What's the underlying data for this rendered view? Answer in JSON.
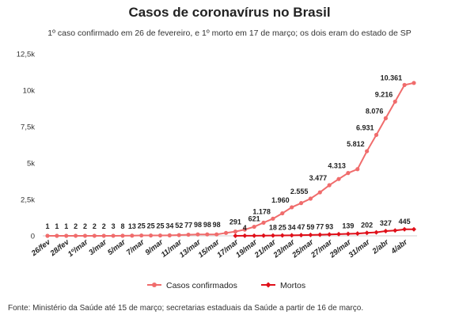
{
  "chart_data": {
    "type": "line",
    "title": "Casos de coronavírus no Brasil",
    "subtitle": "1º caso confirmado em 26 de fevereiro, e 1º morto em 17 de março; os dois eram do estado de SP",
    "xlabel": "",
    "ylabel": "",
    "ylim": [
      0,
      12500
    ],
    "yticks": [
      0,
      2500,
      5000,
      7500,
      10000,
      12500
    ],
    "ytick_labels": [
      "0",
      "2,5k",
      "5k",
      "7,5k",
      "10k",
      "12,5k"
    ],
    "grid": false,
    "legend_position": "bottom",
    "x": [
      "26/fev",
      "27/fev",
      "28/fev",
      "29/fev",
      "1º/mar",
      "2/mar",
      "3/mar",
      "4/mar",
      "5/mar",
      "6/mar",
      "7/mar",
      "8/mar",
      "9/mar",
      "10/mar",
      "11/mar",
      "12/mar",
      "13/mar",
      "14/mar",
      "15/mar",
      "16/mar",
      "17/mar",
      "18/mar",
      "19/mar",
      "20/mar",
      "21/mar",
      "22/mar",
      "23/mar",
      "24/mar",
      "25/mar",
      "26/mar",
      "27/mar",
      "28/mar",
      "29/mar",
      "30/mar",
      "31/mar",
      "1º/abr",
      "2/abr",
      "3/abr",
      "4/abr",
      "5/abr"
    ],
    "x_tick_labels": [
      "26/fev",
      "",
      "28/fev",
      "",
      "1º/mar",
      "",
      "3/mar",
      "",
      "5/mar",
      "",
      "7/mar",
      "",
      "9/mar",
      "",
      "11/mar",
      "",
      "13/mar",
      "",
      "15/mar",
      "",
      "17/mar",
      "",
      "19/mar",
      "",
      "21/mar",
      "",
      "23/mar",
      "",
      "25/mar",
      "",
      "27/mar",
      "",
      "29/mar",
      "",
      "31/mar",
      "",
      "2/abr",
      "",
      "4/abr",
      ""
    ],
    "series": [
      {
        "name": "Casos confirmados",
        "color": "#f06c6c",
        "values": [
          1,
          1,
          1,
          2,
          2,
          2,
          2,
          3,
          8,
          13,
          25,
          25,
          25,
          34,
          52,
          77,
          98,
          98,
          98,
          200,
          291,
          428,
          621,
          904,
          1178,
          1546,
          1960,
          2247,
          2555,
          2985,
          3477,
          3904,
          4313,
          4579,
          5812,
          6931,
          8076,
          9216,
          10361,
          10500
        ],
        "labels": [
          "1",
          "1",
          "1",
          "2",
          "2",
          "2",
          "2",
          "3",
          "8",
          "13",
          "25",
          "25",
          "25",
          "34",
          "52",
          "77",
          "98",
          "98",
          "98",
          "",
          "291",
          "",
          "621",
          "",
          "1.178",
          "",
          "1.960",
          "",
          "2.555",
          "",
          "3.477",
          "",
          "4.313",
          "",
          "5.812",
          "6.931",
          "8.076",
          "9.216",
          "10.361",
          ""
        ]
      },
      {
        "name": "Mortos",
        "color": "#e0101a",
        "values": [
          null,
          null,
          null,
          null,
          null,
          null,
          null,
          null,
          null,
          null,
          null,
          null,
          null,
          null,
          null,
          null,
          null,
          null,
          null,
          null,
          1,
          4,
          7,
          11,
          18,
          25,
          34,
          47,
          59,
          77,
          93,
          114,
          139,
          159,
          202,
          241,
          327,
          365,
          445,
          445
        ],
        "labels": [
          "",
          "",
          "",
          "",
          "",
          "",
          "",
          "",
          "",
          "",
          "",
          "",
          "",
          "",
          "",
          "",
          "",
          "",
          "",
          "",
          "",
          "4",
          "",
          "",
          "18",
          "25",
          "34",
          "47",
          "59",
          "77",
          "93",
          "",
          "139",
          "",
          "202",
          "",
          "327",
          "",
          "445",
          ""
        ]
      }
    ]
  },
  "source": "Fonte: Ministério da Saúde até 15 de março; secretarias estaduais da Saúde a partir de 16 de março."
}
